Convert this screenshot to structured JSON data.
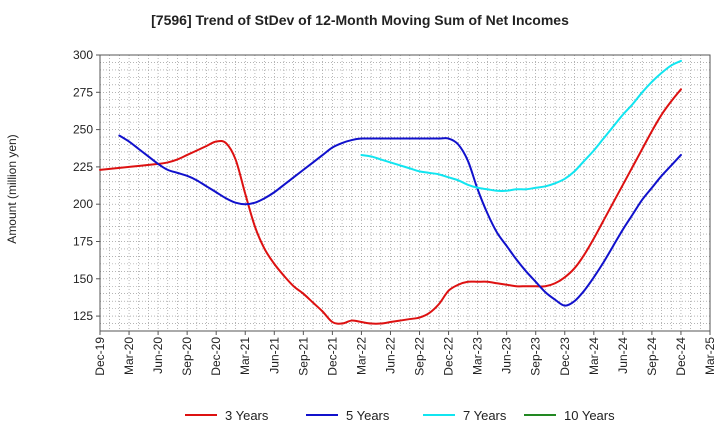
{
  "chart_data": {
    "type": "line",
    "title": "[7596]  Trend of StDev of 12-Month Moving Sum of Net Incomes",
    "ylabel": "Amount (million yen)",
    "xlabel": "",
    "ylim": [
      115,
      300
    ],
    "yticks": [
      125,
      150,
      175,
      200,
      225,
      250,
      275,
      300
    ],
    "grid": true,
    "legend_position": "bottom",
    "x_ticks": [
      "Dec-19",
      "Mar-20",
      "Jun-20",
      "Sep-20",
      "Dec-20",
      "Mar-21",
      "Jun-21",
      "Sep-21",
      "Dec-21",
      "Mar-22",
      "Jun-22",
      "Sep-22",
      "Dec-22",
      "Mar-23",
      "Jun-23",
      "Sep-23",
      "Dec-23",
      "Mar-24",
      "Jun-24",
      "Sep-24",
      "Dec-24",
      "Mar-25"
    ],
    "series": [
      {
        "name": "3 Years",
        "color": "#dd1111",
        "points": [
          [
            "2019-12",
            223
          ],
          [
            "2020-03",
            225
          ],
          [
            "2020-06",
            227
          ],
          [
            "2020-07",
            228
          ],
          [
            "2020-08",
            230
          ],
          [
            "2020-09",
            233
          ],
          [
            "2020-10",
            236
          ],
          [
            "2020-11",
            239
          ],
          [
            "2020-12",
            242
          ],
          [
            "2021-01",
            241
          ],
          [
            "2021-02",
            230
          ],
          [
            "2021-03",
            207
          ],
          [
            "2021-04",
            185
          ],
          [
            "2021-05",
            170
          ],
          [
            "2021-06",
            160
          ],
          [
            "2021-07",
            152
          ],
          [
            "2021-08",
            145
          ],
          [
            "2021-09",
            140
          ],
          [
            "2021-10",
            134
          ],
          [
            "2021-11",
            128
          ],
          [
            "2021-12",
            121
          ],
          [
            "2022-01",
            120
          ],
          [
            "2022-02",
            122
          ],
          [
            "2022-03",
            121
          ],
          [
            "2022-04",
            120
          ],
          [
            "2022-05",
            120
          ],
          [
            "2022-06",
            121
          ],
          [
            "2022-07",
            122
          ],
          [
            "2022-08",
            123
          ],
          [
            "2022-09",
            124
          ],
          [
            "2022-10",
            127
          ],
          [
            "2022-11",
            133
          ],
          [
            "2022-12",
            142
          ],
          [
            "2023-01",
            146
          ],
          [
            "2023-02",
            148
          ],
          [
            "2023-03",
            148
          ],
          [
            "2023-04",
            148
          ],
          [
            "2023-05",
            147
          ],
          [
            "2023-06",
            146
          ],
          [
            "2023-07",
            145
          ],
          [
            "2023-08",
            145
          ],
          [
            "2023-09",
            145
          ],
          [
            "2023-10",
            145
          ],
          [
            "2023-11",
            147
          ],
          [
            "2023-12",
            151
          ],
          [
            "2024-01",
            157
          ],
          [
            "2024-02",
            166
          ],
          [
            "2024-03",
            177
          ],
          [
            "2024-04",
            189
          ],
          [
            "2024-05",
            201
          ],
          [
            "2024-06",
            213
          ],
          [
            "2024-07",
            225
          ],
          [
            "2024-08",
            237
          ],
          [
            "2024-09",
            249
          ],
          [
            "2024-10",
            260
          ],
          [
            "2024-11",
            269
          ],
          [
            "2024-12",
            277
          ]
        ]
      },
      {
        "name": "5 Years",
        "color": "#1111cc",
        "points": [
          [
            "2020-02",
            246
          ],
          [
            "2020-03",
            242
          ],
          [
            "2020-04",
            237
          ],
          [
            "2020-05",
            232
          ],
          [
            "2020-06",
            227
          ],
          [
            "2020-07",
            223
          ],
          [
            "2020-08",
            221
          ],
          [
            "2020-09",
            219
          ],
          [
            "2020-10",
            216
          ],
          [
            "2020-11",
            212
          ],
          [
            "2020-12",
            208
          ],
          [
            "2021-01",
            204
          ],
          [
            "2021-02",
            201
          ],
          [
            "2021-03",
            200
          ],
          [
            "2021-04",
            201
          ],
          [
            "2021-05",
            204
          ],
          [
            "2021-06",
            208
          ],
          [
            "2021-07",
            213
          ],
          [
            "2021-08",
            218
          ],
          [
            "2021-09",
            223
          ],
          [
            "2021-10",
            228
          ],
          [
            "2021-11",
            233
          ],
          [
            "2021-12",
            238
          ],
          [
            "2022-01",
            241
          ],
          [
            "2022-02",
            243
          ],
          [
            "2022-03",
            244
          ],
          [
            "2022-04",
            244
          ],
          [
            "2022-05",
            244
          ],
          [
            "2022-06",
            244
          ],
          [
            "2022-07",
            244
          ],
          [
            "2022-08",
            244
          ],
          [
            "2022-09",
            244
          ],
          [
            "2022-10",
            244
          ],
          [
            "2022-11",
            244
          ],
          [
            "2022-12",
            244
          ],
          [
            "2023-01",
            240
          ],
          [
            "2023-02",
            229
          ],
          [
            "2023-03",
            210
          ],
          [
            "2023-04",
            194
          ],
          [
            "2023-05",
            181
          ],
          [
            "2023-06",
            172
          ],
          [
            "2023-07",
            163
          ],
          [
            "2023-08",
            155
          ],
          [
            "2023-09",
            148
          ],
          [
            "2023-10",
            141
          ],
          [
            "2023-11",
            136
          ],
          [
            "2023-12",
            132
          ],
          [
            "2024-01",
            135
          ],
          [
            "2024-02",
            142
          ],
          [
            "2024-03",
            151
          ],
          [
            "2024-04",
            161
          ],
          [
            "2024-05",
            172
          ],
          [
            "2024-06",
            183
          ],
          [
            "2024-07",
            193
          ],
          [
            "2024-08",
            203
          ],
          [
            "2024-09",
            211
          ],
          [
            "2024-10",
            219
          ],
          [
            "2024-11",
            226
          ],
          [
            "2024-12",
            233
          ]
        ]
      },
      {
        "name": "7 Years",
        "color": "#11e5f0",
        "points": [
          [
            "2022-03",
            233
          ],
          [
            "2022-04",
            232
          ],
          [
            "2022-05",
            230
          ],
          [
            "2022-06",
            228
          ],
          [
            "2022-07",
            226
          ],
          [
            "2022-08",
            224
          ],
          [
            "2022-09",
            222
          ],
          [
            "2022-10",
            221
          ],
          [
            "2022-11",
            220
          ],
          [
            "2022-12",
            218
          ],
          [
            "2023-01",
            216
          ],
          [
            "2023-02",
            213
          ],
          [
            "2023-03",
            211
          ],
          [
            "2023-04",
            210
          ],
          [
            "2023-05",
            209
          ],
          [
            "2023-06",
            209
          ],
          [
            "2023-07",
            210
          ],
          [
            "2023-08",
            210
          ],
          [
            "2023-09",
            211
          ],
          [
            "2023-10",
            212
          ],
          [
            "2023-11",
            214
          ],
          [
            "2023-12",
            217
          ],
          [
            "2024-01",
            222
          ],
          [
            "2024-02",
            229
          ],
          [
            "2024-03",
            236
          ],
          [
            "2024-04",
            244
          ],
          [
            "2024-05",
            252
          ],
          [
            "2024-06",
            260
          ],
          [
            "2024-07",
            267
          ],
          [
            "2024-08",
            275
          ],
          [
            "2024-09",
            282
          ],
          [
            "2024-10",
            288
          ],
          [
            "2024-11",
            293
          ],
          [
            "2024-12",
            296
          ]
        ]
      },
      {
        "name": "10 Years",
        "color": "#228822",
        "points": []
      }
    ]
  }
}
